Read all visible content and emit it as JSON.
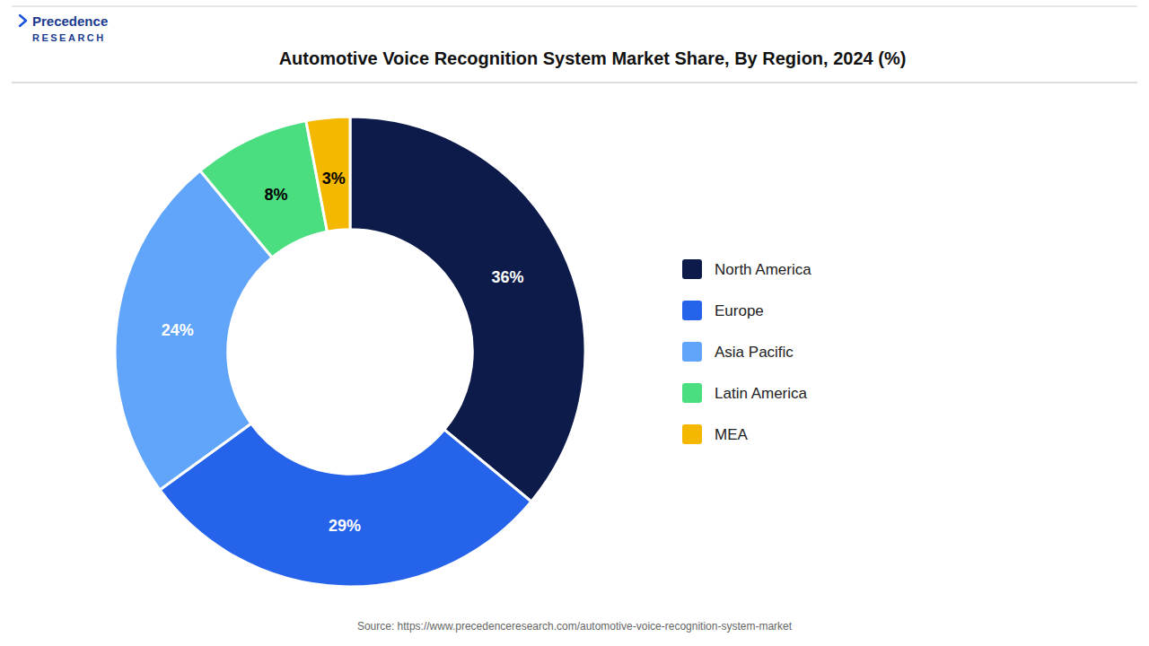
{
  "chart_data": {
    "type": "donut",
    "title": "Automotive Voice Recognition System Market Share, By Region, 2024 (%)",
    "categories": [
      "North America",
      "Europe",
      "Asia Pacific",
      "Latin America",
      "MEA"
    ],
    "values": [
      36,
      29,
      24,
      8,
      3
    ],
    "value_labels": [
      "36%",
      "29%",
      "24%",
      "8%",
      "3%"
    ],
    "colors": [
      "#0d1b4b",
      "#2563eb",
      "#60a5fa",
      "#4ade80",
      "#f5b800"
    ],
    "data_labels": true,
    "legend": "right",
    "annotations": [
      "Source: https://www.precedenceresearch.com/automotive-voice-recognition-system-market",
      "Precedence",
      "RESEARCH"
    ]
  }
}
